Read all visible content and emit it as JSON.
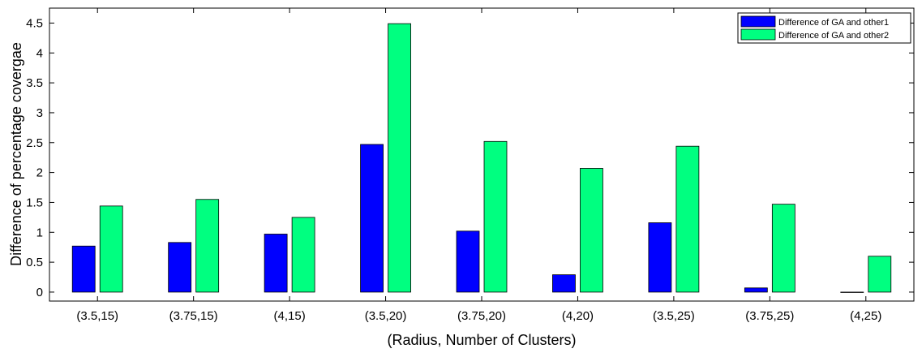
{
  "chart_data": {
    "type": "bar",
    "title": "",
    "xlabel": "(Radius, Number of Clusters)",
    "ylabel": "Difference of percentage covergae",
    "ylim": [
      -0.15,
      4.75
    ],
    "yticks": [
      "0",
      "0.5",
      "1",
      "1.5",
      "2",
      "2.5",
      "3",
      "3.5",
      "4",
      "4.5"
    ],
    "categories": [
      "(3.5,15)",
      "(3.75,15)",
      "(4,15)",
      "(3.5,20)",
      "(3.75,20)",
      "(4,20)",
      "(3.5,25)",
      "(3.75,25)",
      "(4,25)"
    ],
    "series": [
      {
        "name": "Difference of GA and other1",
        "color": "#0000ff",
        "values": [
          0.77,
          0.83,
          0.97,
          2.47,
          1.02,
          0.29,
          1.16,
          0.07,
          0.0
        ]
      },
      {
        "name": "Difference of GA and other2",
        "color": "#00ff80",
        "values": [
          1.44,
          1.55,
          1.25,
          4.49,
          2.52,
          2.07,
          2.44,
          1.47,
          0.6
        ]
      }
    ],
    "grid": false,
    "legend_position": "top-right"
  }
}
